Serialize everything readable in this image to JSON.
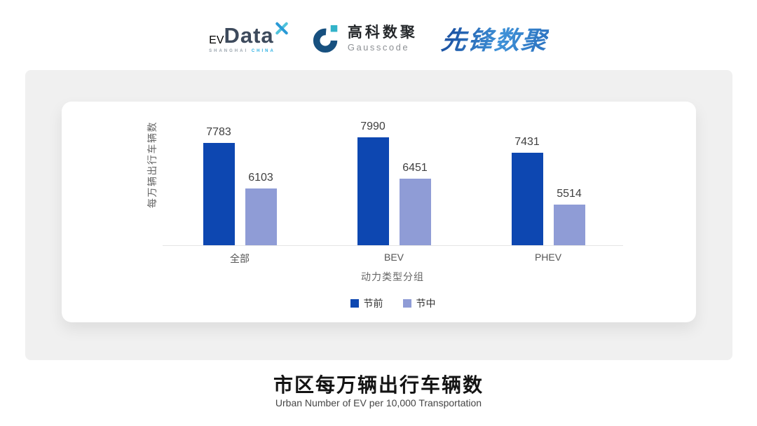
{
  "header": {
    "evdata": {
      "ev": "EV",
      "data": "Data",
      "sub_left": "SHANGHAI",
      "sub_right": "CHINA"
    },
    "gausscode": {
      "name_cn": "高科数聚",
      "name_en": "Gausscode"
    },
    "pioneer": {
      "name": "先锋数聚"
    }
  },
  "chart_data": {
    "type": "bar",
    "categories": [
      "全部",
      "BEV",
      "PHEV"
    ],
    "series": [
      {
        "name": "节前",
        "color": "#0d47b1",
        "values": [
          7783,
          7990,
          7431
        ]
      },
      {
        "name": "节中",
        "color": "#8f9cd6",
        "values": [
          6103,
          6451,
          5514
        ]
      }
    ],
    "xlabel": "动力类型分组",
    "ylabel": "每万辆出行车辆数",
    "ylim": [
      4000,
      8300
    ],
    "grid": false,
    "legend_position": "bottom",
    "value_labels": true
  },
  "footer": {
    "title": "市区每万辆出行车辆数",
    "subtitle": "Urban Number of EV per 10,000 Transportation"
  },
  "colors": {
    "page_bg": "#ffffff",
    "panel_bg": "#f0f0f0",
    "card_bg": "#ffffff",
    "axis_line": "#e5e5e5",
    "series_pre_holiday": "#0d47b1",
    "series_mid_holiday": "#8f9cd6",
    "evdata_blue": "#2bb0e3",
    "evdata_dark": "#3d4a5c",
    "gausscode_navy": "#17507f",
    "gausscode_teal": "#33b3c9",
    "pioneer_blue": "#2f78c4"
  }
}
